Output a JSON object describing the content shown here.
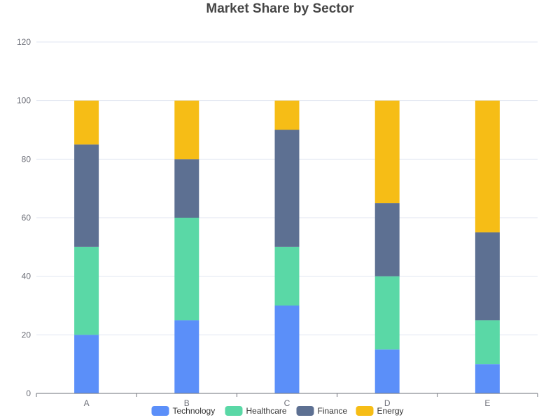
{
  "chart_data": {
    "type": "bar",
    "stacked": true,
    "title": "Market Share by Sector",
    "xlabel": "",
    "ylabel": "",
    "categories": [
      "A",
      "B",
      "C",
      "D",
      "E"
    ],
    "ylim": [
      0,
      120
    ],
    "yticks": [
      0,
      20,
      40,
      60,
      80,
      100,
      120
    ],
    "grid": true,
    "legend_position": "bottom",
    "series": [
      {
        "name": "Technology",
        "color": "#5b8ff9",
        "values": [
          20,
          25,
          30,
          15,
          10
        ]
      },
      {
        "name": "Healthcare",
        "color": "#5ad8a6",
        "values": [
          30,
          35,
          20,
          25,
          15
        ]
      },
      {
        "name": "Finance",
        "color": "#5d7092",
        "values": [
          35,
          20,
          40,
          25,
          30
        ]
      },
      {
        "name": "Energy",
        "color": "#f6bd16",
        "values": [
          15,
          20,
          10,
          35,
          45
        ]
      }
    ]
  }
}
